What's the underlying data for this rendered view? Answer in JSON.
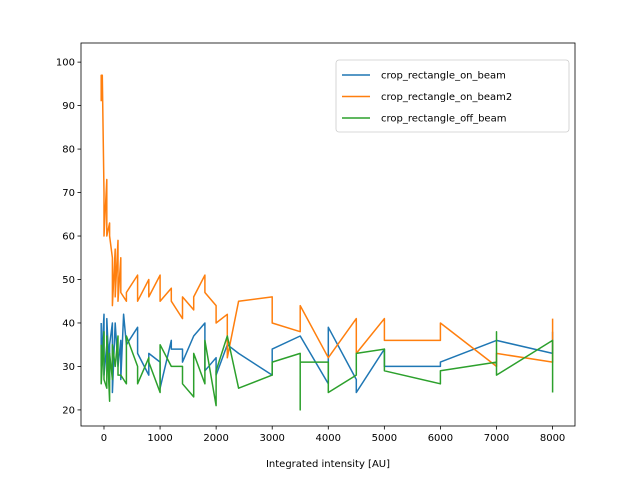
{
  "chart_data": {
    "type": "line",
    "title": "",
    "xlabel": "Integrated intensity [AU]",
    "ylabel": "",
    "xlim": [
      -410,
      8400
    ],
    "ylim": [
      16.3,
      104.4
    ],
    "xticks": [
      0,
      1000,
      2000,
      3000,
      4000,
      5000,
      6000,
      7000,
      8000
    ],
    "yticks": [
      20,
      30,
      40,
      50,
      60,
      70,
      80,
      90,
      100
    ],
    "grid": false,
    "legend_position": "top-right",
    "series": [
      {
        "name": "crop_rectangle_on_beam",
        "color": "#1f77b4",
        "points": [
          [
            -50,
            40
          ],
          [
            -50,
            30
          ],
          [
            0,
            42
          ],
          [
            0,
            28
          ],
          [
            50,
            35
          ],
          [
            50,
            41
          ],
          [
            100,
            27
          ],
          [
            100,
            35
          ],
          [
            150,
            40
          ],
          [
            150,
            24
          ],
          [
            200,
            40
          ],
          [
            250,
            30
          ],
          [
            300,
            36
          ],
          [
            300,
            27
          ],
          [
            350,
            42
          ],
          [
            400,
            35
          ],
          [
            600,
            39
          ],
          [
            600,
            33
          ],
          [
            800,
            28
          ],
          [
            800,
            33
          ],
          [
            1000,
            31
          ],
          [
            1000,
            25
          ],
          [
            1200,
            36
          ],
          [
            1200,
            34
          ],
          [
            1400,
            34
          ],
          [
            1400,
            31
          ],
          [
            1600,
            37
          ],
          [
            1800,
            40
          ],
          [
            1800,
            29
          ],
          [
            2000,
            32
          ],
          [
            2000,
            28
          ],
          [
            2200,
            35
          ],
          [
            2400,
            33
          ],
          [
            3000,
            28
          ],
          [
            3000,
            34
          ],
          [
            3500,
            37
          ],
          [
            4000,
            26
          ],
          [
            4000,
            39
          ],
          [
            4500,
            27
          ],
          [
            4500,
            24
          ],
          [
            5000,
            34
          ],
          [
            5000,
            30
          ],
          [
            6000,
            30
          ],
          [
            6000,
            31
          ],
          [
            7000,
            36
          ],
          [
            8000,
            33
          ],
          [
            8000,
            38
          ]
        ]
      },
      {
        "name": "crop_rectangle_on_beam2",
        "color": "#ff7f0e",
        "points": [
          [
            -50,
            91
          ],
          [
            -50,
            97
          ],
          [
            -30,
            97
          ],
          [
            0,
            70
          ],
          [
            0,
            60
          ],
          [
            50,
            73
          ],
          [
            50,
            60
          ],
          [
            100,
            63
          ],
          [
            100,
            60
          ],
          [
            150,
            55
          ],
          [
            150,
            44
          ],
          [
            200,
            57
          ],
          [
            200,
            46
          ],
          [
            250,
            59
          ],
          [
            250,
            45
          ],
          [
            300,
            55
          ],
          [
            300,
            47
          ],
          [
            400,
            45
          ],
          [
            400,
            47
          ],
          [
            600,
            51
          ],
          [
            600,
            45
          ],
          [
            800,
            50
          ],
          [
            800,
            46
          ],
          [
            1000,
            51
          ],
          [
            1000,
            45
          ],
          [
            1200,
            48
          ],
          [
            1200,
            45
          ],
          [
            1400,
            41
          ],
          [
            1400,
            46
          ],
          [
            1600,
            43
          ],
          [
            1600,
            46
          ],
          [
            1800,
            51
          ],
          [
            1800,
            47
          ],
          [
            2000,
            44
          ],
          [
            2000,
            40
          ],
          [
            2200,
            42
          ],
          [
            2200,
            32
          ],
          [
            2400,
            45
          ],
          [
            3000,
            46
          ],
          [
            3000,
            40
          ],
          [
            3500,
            38
          ],
          [
            3500,
            44
          ],
          [
            4000,
            32
          ],
          [
            4500,
            41
          ],
          [
            4500,
            33
          ],
          [
            5000,
            41
          ],
          [
            5000,
            36
          ],
          [
            6000,
            36
          ],
          [
            6000,
            40
          ],
          [
            7000,
            30
          ],
          [
            7000,
            33
          ],
          [
            8000,
            31
          ],
          [
            8000,
            41
          ]
        ]
      },
      {
        "name": "crop_rectangle_off_beam",
        "color": "#2ca02c",
        "points": [
          [
            -50,
            35
          ],
          [
            -50,
            26
          ],
          [
            0,
            38
          ],
          [
            0,
            27
          ],
          [
            50,
            25
          ],
          [
            50,
            37
          ],
          [
            100,
            22
          ],
          [
            100,
            33
          ],
          [
            150,
            27
          ],
          [
            150,
            35
          ],
          [
            200,
            30
          ],
          [
            250,
            37
          ],
          [
            250,
            28
          ],
          [
            300,
            28
          ],
          [
            400,
            26
          ],
          [
            400,
            37
          ],
          [
            600,
            30
          ],
          [
            600,
            26
          ],
          [
            800,
            32
          ],
          [
            800,
            31
          ],
          [
            1000,
            24
          ],
          [
            1000,
            35
          ],
          [
            1200,
            30
          ],
          [
            1400,
            30
          ],
          [
            1400,
            26
          ],
          [
            1600,
            23
          ],
          [
            1600,
            33
          ],
          [
            1800,
            26
          ],
          [
            1800,
            36
          ],
          [
            2000,
            21
          ],
          [
            2000,
            29
          ],
          [
            2200,
            37
          ],
          [
            2400,
            25
          ],
          [
            3000,
            28
          ],
          [
            3000,
            31
          ],
          [
            3500,
            33
          ],
          [
            3500,
            20
          ],
          [
            3500,
            31
          ],
          [
            4000,
            31
          ],
          [
            4000,
            24
          ],
          [
            4500,
            28
          ],
          [
            4500,
            33
          ],
          [
            5000,
            34
          ],
          [
            5000,
            29
          ],
          [
            6000,
            26
          ],
          [
            6000,
            29
          ],
          [
            7000,
            31
          ],
          [
            7000,
            38
          ],
          [
            7000,
            28
          ],
          [
            8000,
            36
          ],
          [
            8000,
            24
          ]
        ]
      }
    ]
  }
}
